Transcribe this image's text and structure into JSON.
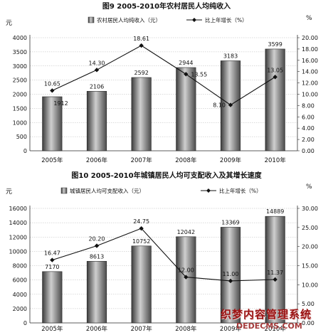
{
  "chart_data": [
    {
      "type": "bar",
      "title": "图9 2005-2010年农村居民人均纯收入",
      "categories": [
        "2005年",
        "2006年",
        "2007年",
        "2008年",
        "2009年",
        "2010年"
      ],
      "left_axis_unit": "元",
      "right_axis_unit": "%",
      "ylim": [
        0,
        4000
      ],
      "yticks": [
        "0",
        "500",
        "1000",
        "1500",
        "2000",
        "2500",
        "3000",
        "3500",
        "4000"
      ],
      "y2lim": [
        0,
        20
      ],
      "y2ticks": [
        "0.00",
        "2.00",
        "4.00",
        "6.00",
        "8.00",
        "10.00",
        "12.00",
        "14.00",
        "16.00",
        "18.00",
        "20.00"
      ],
      "series": [
        {
          "name": "农村居民人均纯收入（元）",
          "type": "bar",
          "axis": "left",
          "values": [
            1912,
            2106,
            2592,
            2944,
            3183,
            3599
          ],
          "labels": [
            "1912",
            "2106",
            "2592",
            "2944",
            "3183",
            "3599"
          ]
        },
        {
          "name": "比上年增长（%）",
          "type": "line",
          "axis": "right",
          "values": [
            10.65,
            14.3,
            18.61,
            13.55,
            8.1,
            13.05
          ],
          "labels": [
            "10.65",
            "14.30",
            "18.61",
            "13.55",
            "8.10",
            "13.05"
          ]
        }
      ],
      "grid": true,
      "legend": "top"
    },
    {
      "type": "bar",
      "title": "图10 2005-2010年城镇居民人均可支配收入及其增长速度",
      "categories": [
        "2005年",
        "2006年",
        "2007年",
        "2008年",
        "2009年",
        "2010年"
      ],
      "left_axis_unit": "元",
      "right_axis_unit": "%",
      "ylim": [
        0,
        16000
      ],
      "yticks": [
        "0",
        "2000",
        "4000",
        "6000",
        "8000",
        "10000",
        "12000",
        "14000",
        "16000"
      ],
      "y2lim": [
        0,
        30
      ],
      "y2ticks": [
        "0.00",
        "5.00",
        "10.00",
        "15.00",
        "20.00",
        "25.00",
        "30.00"
      ],
      "series": [
        {
          "name": "城镇居民人均可支配收入（元）",
          "type": "bar",
          "axis": "left",
          "values": [
            7170,
            8613,
            10752,
            12042,
            13369,
            14889
          ],
          "labels": [
            "7170",
            "8613",
            "10752",
            "12042",
            "13369",
            "14889"
          ]
        },
        {
          "name": "比上年增长（%）",
          "type": "line",
          "axis": "right",
          "values": [
            16.47,
            20.2,
            24.75,
            12.0,
            11.0,
            11.37
          ],
          "labels": [
            "16.47",
            "20.20",
            "24.75",
            "12.00",
            "11.00",
            "11.37"
          ]
        }
      ],
      "grid": true,
      "legend": "top"
    }
  ],
  "watermark": {
    "main": "织梦内容管理系统",
    "sub": "DEDECMS.COM"
  }
}
